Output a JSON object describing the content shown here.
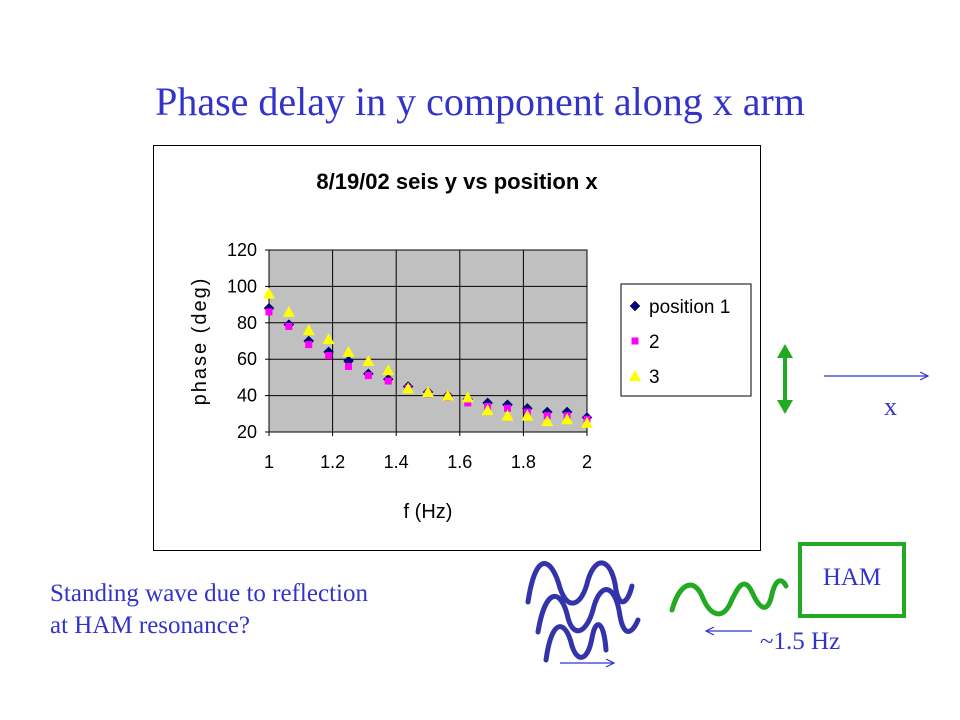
{
  "slide": {
    "title": "Phase delay in y component along x arm",
    "caption_line1": "Standing wave due to reflection",
    "caption_line2": "at HAM resonance?",
    "ham_label": "HAM",
    "x_axis_label": "x",
    "freq_label": "~1.5 Hz",
    "colors": {
      "text": "#3333cc",
      "green": "#22aa22",
      "wave_blue": "#3333aa"
    }
  },
  "chart_data": {
    "type": "scatter",
    "title": "8/19/02 seis y vs position x",
    "xlabel": "f (Hz)",
    "ylabel": "phase (deg)",
    "xlim": [
      1,
      2
    ],
    "ylim": [
      20,
      120
    ],
    "x_ticks": [
      "1",
      "1.2",
      "1.4",
      "1.6",
      "1.8",
      "2"
    ],
    "y_ticks": [
      "20",
      "40",
      "60",
      "80",
      "100",
      "120"
    ],
    "grid": true,
    "plot_background": "#c0c0c0",
    "legend_position": "right",
    "series": [
      {
        "name": "position 1",
        "marker": "diamond",
        "color": "#000080",
        "x": [
          1,
          1.0625,
          1.125,
          1.1875,
          1.25,
          1.3125,
          1.375,
          1.4375,
          1.5,
          1.5625,
          1.625,
          1.6875,
          1.75,
          1.8125,
          1.875,
          1.9375,
          2
        ],
        "y": [
          88,
          79,
          70,
          64,
          59,
          52,
          49,
          45,
          42,
          40,
          38,
          36,
          35,
          33,
          31,
          31,
          28
        ]
      },
      {
        "name": "2",
        "marker": "square",
        "color": "#ff00ff",
        "x": [
          1,
          1.0625,
          1.125,
          1.1875,
          1.25,
          1.3125,
          1.375,
          1.4375,
          1.5,
          1.5625,
          1.625,
          1.6875,
          1.75,
          1.8125,
          1.875,
          1.9375,
          2
        ],
        "y": [
          86,
          78,
          68,
          62,
          56,
          51,
          48,
          44,
          41,
          39,
          36,
          34,
          33,
          31,
          29,
          29,
          27
        ]
      },
      {
        "name": "3",
        "marker": "triangle",
        "color": "#ffff00",
        "x": [
          1,
          1.0625,
          1.125,
          1.1875,
          1.25,
          1.3125,
          1.375,
          1.4375,
          1.5,
          1.5625,
          1.625,
          1.6875,
          1.75,
          1.8125,
          1.875,
          1.9375,
          2
        ],
        "y": [
          96,
          86,
          76,
          71,
          64,
          59,
          54,
          44,
          42,
          40,
          39,
          32,
          29,
          29,
          26,
          27,
          25
        ]
      }
    ]
  }
}
